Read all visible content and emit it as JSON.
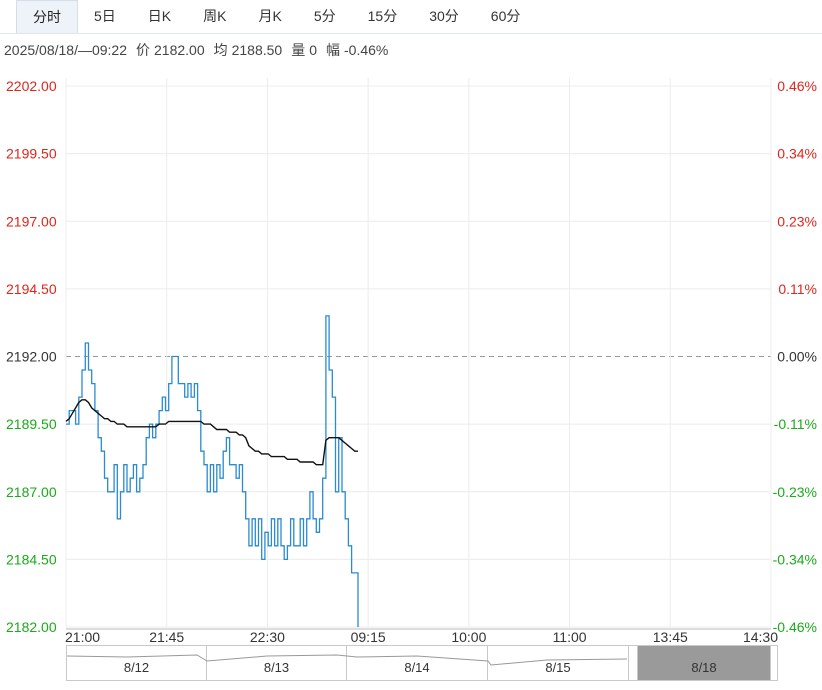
{
  "tabs": [
    {
      "label": "分时",
      "active": true
    },
    {
      "label": "5日"
    },
    {
      "label": "日K"
    },
    {
      "label": "周K"
    },
    {
      "label": "月K"
    },
    {
      "label": "5分"
    },
    {
      "label": "15分"
    },
    {
      "label": "30分"
    },
    {
      "label": "60分"
    }
  ],
  "info": {
    "datetime": "2025/08/18/—09:22",
    "price_label": "价",
    "price": "2182.00",
    "avg_label": "均",
    "avg": "2188.50",
    "vol_label": "量",
    "vol": "0",
    "chg_label": "幅",
    "chg": "-0.46%"
  },
  "colors": {
    "up": "#e0251a",
    "down": "#1aaa1a",
    "price_line": "#2a8ad2",
    "avg_line": "#111111",
    "grid": "#ececec"
  },
  "chart_data": {
    "type": "line",
    "y_ticks": [
      "2202.00",
      "2199.50",
      "2197.00",
      "2194.50",
      "2192.00",
      "2189.50",
      "2187.00",
      "2184.50",
      "2182.00"
    ],
    "pct_ticks": [
      "0.46%",
      "0.34%",
      "0.23%",
      "0.11%",
      "0.00%",
      "-0.11%",
      "-0.23%",
      "-0.34%",
      "-0.46%"
    ],
    "prev_close": 2192.0,
    "ylim": [
      2182.0,
      2202.0
    ],
    "x_ticks": [
      "21:00",
      "21:45",
      "22:30",
      "09:15",
      "10:00",
      "11:00",
      "13:45",
      "14:30"
    ],
    "series": [
      {
        "values": [
          2189.5,
          2190.0,
          2190.0,
          2189.5,
          2190.5,
          2191.5,
          2192.5,
          2191.5,
          2191.0,
          2190.0,
          2189.0,
          2188.5,
          2187.5,
          2187.0,
          2187.0,
          2188.0,
          2186.0,
          2187.0,
          2188.0,
          2187.0,
          2187.5,
          2188.0,
          2187.0,
          2187.5,
          2188.0,
          2189.0,
          2189.5,
          2189.0,
          2189.5,
          2190.0,
          2190.5,
          2190.0,
          2191.0,
          2192.0,
          2192.0,
          2191.0,
          2191.0,
          2190.5,
          2191.0,
          2190.5,
          2191.0,
          2190.0,
          2188.5,
          2188.0,
          2187.0,
          2188.0,
          2187.0,
          2188.0,
          2187.5,
          2188.5,
          2189.0,
          2188.0,
          2188.0,
          2187.5,
          2188.0,
          2187.0,
          2186.0,
          2185.0,
          2186.0,
          2185.0,
          2186.0,
          2184.5,
          2185.5,
          2185.0,
          2186.0,
          2185.0,
          2186.0,
          2185.0,
          2184.5,
          2185.0,
          2186.0,
          2185.0,
          2185.0,
          2186.0,
          2185.0,
          2186.0,
          2187.0,
          2186.0,
          2185.5,
          2186.0,
          2187.5,
          2193.5,
          2191.5,
          2190.5,
          2187.0,
          2189.0,
          2187.0,
          2186.0,
          2185.0,
          2184.0,
          2184.0,
          2182.0
        ]
      },
      {
        "values": [
          2189.6,
          2189.7,
          2189.9,
          2190.1,
          2190.3,
          2190.4,
          2190.4,
          2190.3,
          2190.1,
          2190.0,
          2189.9,
          2189.8,
          2189.7,
          2189.7,
          2189.6,
          2189.6,
          2189.5,
          2189.5,
          2189.5,
          2189.4,
          2189.4,
          2189.4,
          2189.4,
          2189.4,
          2189.4,
          2189.4,
          2189.4,
          2189.4,
          2189.4,
          2189.5,
          2189.5,
          2189.5,
          2189.6,
          2189.6,
          2189.6,
          2189.6,
          2189.6,
          2189.6,
          2189.6,
          2189.6,
          2189.6,
          2189.6,
          2189.6,
          2189.5,
          2189.5,
          2189.5,
          2189.4,
          2189.3,
          2189.3,
          2189.3,
          2189.3,
          2189.2,
          2189.2,
          2189.2,
          2189.1,
          2189.1,
          2189.0,
          2188.7,
          2188.6,
          2188.5,
          2188.5,
          2188.4,
          2188.4,
          2188.4,
          2188.3,
          2188.3,
          2188.3,
          2188.3,
          2188.3,
          2188.2,
          2188.2,
          2188.2,
          2188.2,
          2188.1,
          2188.1,
          2188.1,
          2188.1,
          2188.1,
          2188.0,
          2188.0,
          2188.0,
          2188.9,
          2189.0,
          2189.0,
          2189.0,
          2189.0,
          2188.9,
          2188.8,
          2188.7,
          2188.6,
          2188.5,
          2188.5
        ]
      }
    ]
  },
  "navigator": {
    "days": [
      {
        "label": "8/12"
      },
      {
        "label": "8/13"
      },
      {
        "label": "8/14"
      },
      {
        "label": "8/15"
      },
      {
        "label": "8/18",
        "selected": true
      }
    ]
  }
}
